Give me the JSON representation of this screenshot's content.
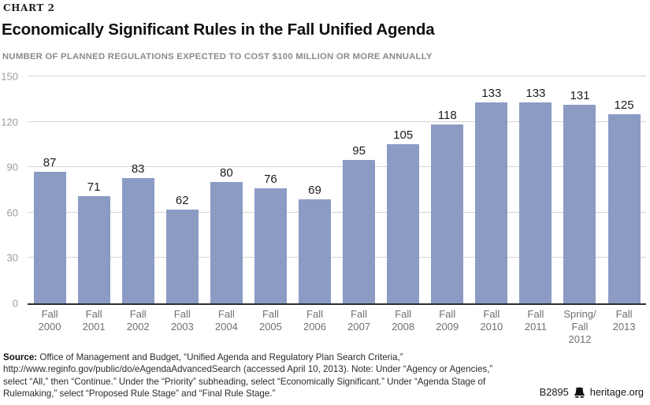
{
  "page": {
    "kicker": "CHART 2",
    "title": "Economically Significant Rules in the Fall Unified Agenda",
    "subtitle": "NUMBER OF PLANNED REGULATIONS EXPECTED TO COST $100 MILLION OR MORE ANNUALLY"
  },
  "chart_data": {
    "type": "bar",
    "title": "Economically Significant Rules in the Fall Unified Agenda",
    "subtitle": "NUMBER OF PLANNED REGULATIONS EXPECTED TO COST $100 MILLION OR MORE ANNUALLY",
    "categories": [
      "Fall\n2000",
      "Fall\n2001",
      "Fall\n2002",
      "Fall\n2003",
      "Fall\n2004",
      "Fall\n2005",
      "Fall\n2006",
      "Fall\n2007",
      "Fall\n2008",
      "Fall\n2009",
      "Fall\n2010",
      "Fall\n2011",
      "Spring/\nFall\n2012",
      "Fall\n2013"
    ],
    "values": [
      87,
      71,
      83,
      62,
      80,
      76,
      69,
      95,
      105,
      118,
      133,
      133,
      131,
      125
    ],
    "ylim": [
      0,
      150
    ],
    "yticks": [
      0,
      30,
      60,
      90,
      120,
      150
    ],
    "grid": "horizontal",
    "legend": "none",
    "value_labels": true,
    "xlabel": "",
    "ylabel": ""
  },
  "colors": {
    "bar": "#8c9bc4",
    "grid": "#d4d4d4",
    "axis_line": "#2b2d30",
    "y_tick_label": "#9c9c9c",
    "x_tick_label": "#6e7072"
  },
  "footer": {
    "source_label": "Source:",
    "source_text": " Office of Management and Budget, “Unified Agenda and Regulatory Plan Search Criteria,” http://www.reginfo.gov/public/do/eAgendaAdvancedSearch (accessed April 10, 2013). Note: Under “Agency or Agencies,” select “All,” then “Continue.” Under the “Priority” subheading, select “Economically Significant.” Under “Agenda Stage of Rulemaking,” select “Proposed Rule Stage” and “Final Rule Stage.”",
    "report_id": "B2895",
    "brand": "heritage.org",
    "bell_icon": "liberty-bell-icon"
  }
}
